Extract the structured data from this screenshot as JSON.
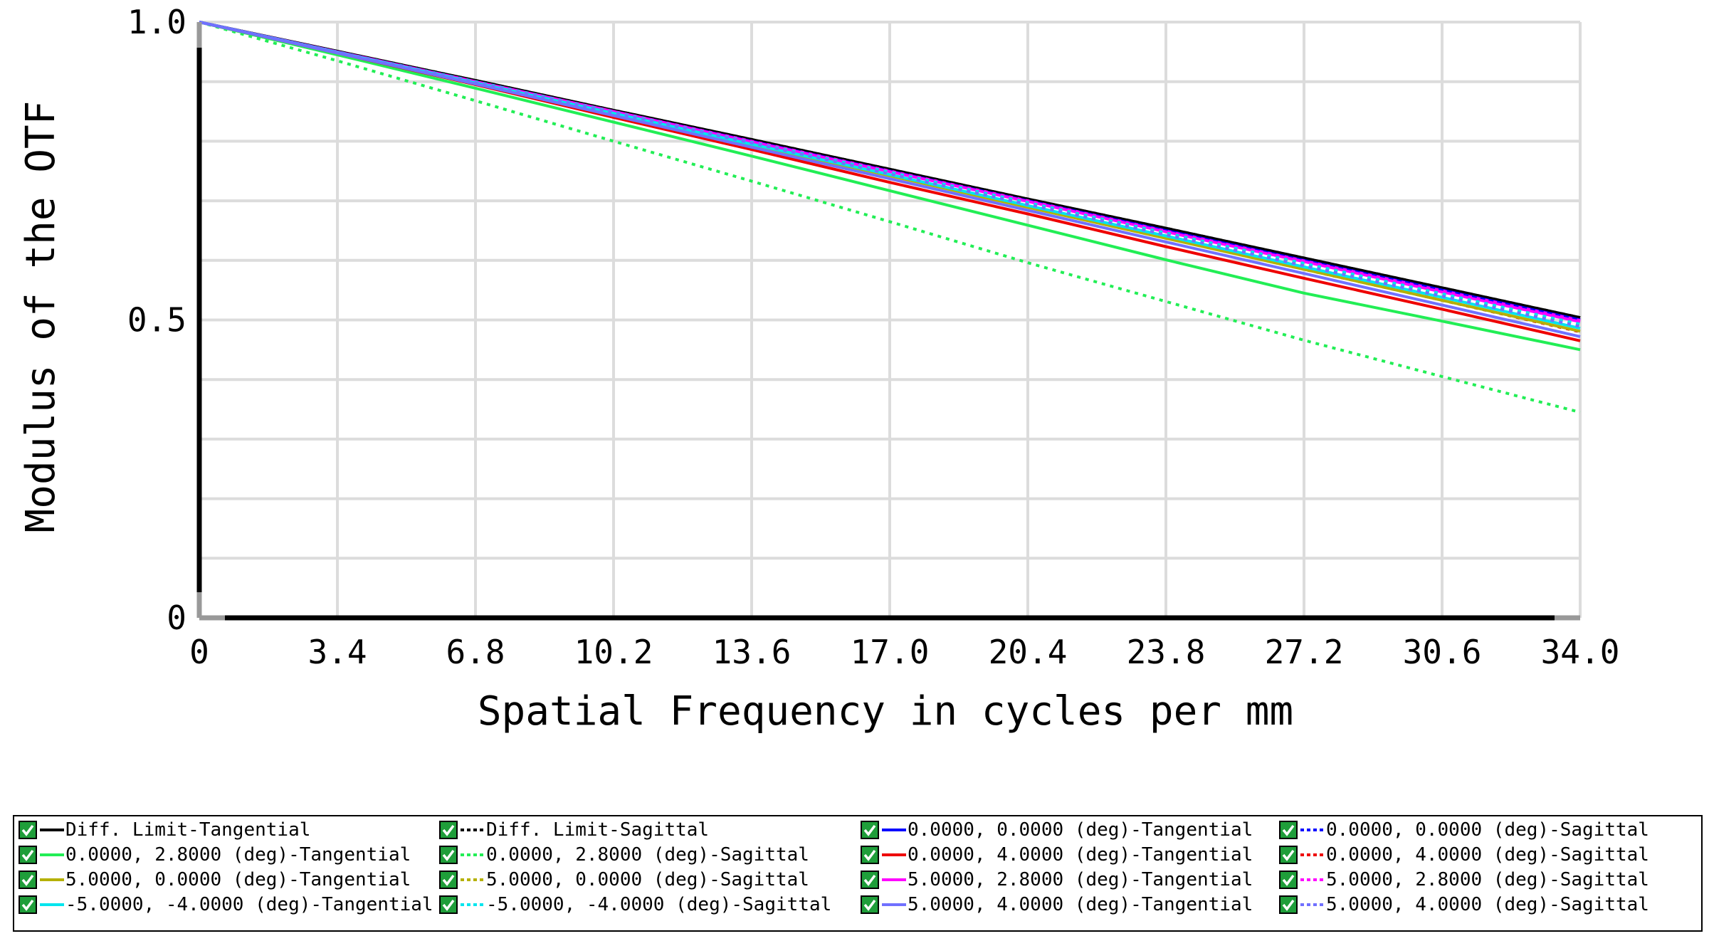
{
  "chart_data": {
    "type": "line",
    "xlabel": "Spatial Frequency in cycles per mm",
    "ylabel": "Modulus of the OTF",
    "xlim": [
      0,
      34.0
    ],
    "ylim": [
      0,
      1.0
    ],
    "x_ticks": [
      "0",
      "3.4",
      "6.8",
      "10.2",
      "13.6",
      "17.0",
      "20.4",
      "23.8",
      "27.2",
      "30.6",
      "34.0"
    ],
    "y_ticks": [
      "0",
      "0.5",
      "1.0"
    ],
    "grid": true,
    "x": [
      0,
      3.4,
      6.8,
      10.2,
      13.6,
      17.0,
      20.4,
      23.8,
      27.2,
      30.6,
      34.0
    ],
    "series": [
      {
        "name": "Diff. Limit-Tangential",
        "color": "#000000",
        "dash": "solid",
        "values": [
          1.0,
          0.951,
          0.902,
          0.852,
          0.803,
          0.753,
          0.703,
          0.654,
          0.604,
          0.554,
          0.504
        ]
      },
      {
        "name": "Diff. Limit-Sagittal",
        "color": "#000000",
        "dash": "dotted",
        "values": [
          1.0,
          0.951,
          0.902,
          0.852,
          0.803,
          0.753,
          0.703,
          0.654,
          0.604,
          0.554,
          0.504
        ]
      },
      {
        "name": "0.0000, 0.0000 (deg)-Tangential",
        "color": "#0000ff",
        "dash": "solid",
        "values": [
          1.0,
          0.95,
          0.9,
          0.85,
          0.8,
          0.75,
          0.7,
          0.65,
          0.6,
          0.55,
          0.5
        ]
      },
      {
        "name": "0.0000, 0.0000 (deg)-Sagittal",
        "color": "#0000ff",
        "dash": "dotted",
        "values": [
          1.0,
          0.95,
          0.9,
          0.85,
          0.8,
          0.75,
          0.7,
          0.65,
          0.6,
          0.55,
          0.5
        ]
      },
      {
        "name": "0.0000, 2.8000 (deg)-Tangential",
        "color": "#22ee55",
        "dash": "solid",
        "values": [
          1.0,
          0.945,
          0.889,
          0.832,
          0.775,
          0.717,
          0.659,
          0.601,
          0.545,
          0.498,
          0.45
        ]
      },
      {
        "name": "0.0000, 2.8000 (deg)-Sagittal",
        "color": "#22ee55",
        "dash": "dotted",
        "values": [
          1.0,
          0.935,
          0.868,
          0.8,
          0.733,
          0.665,
          0.596,
          0.531,
          0.466,
          0.405,
          0.345
        ]
      },
      {
        "name": "0.0000, 4.0000 (deg)-Tangential",
        "color": "#ee0000",
        "dash": "solid",
        "values": [
          1.0,
          0.948,
          0.895,
          0.84,
          0.786,
          0.731,
          0.678,
          0.623,
          0.57,
          0.518,
          0.465
        ]
      },
      {
        "name": "0.0000, 4.0000 (deg)-Sagittal",
        "color": "#ee0000",
        "dash": "dotted",
        "values": [
          1.0,
          0.95,
          0.899,
          0.847,
          0.795,
          0.743,
          0.69,
          0.638,
          0.585,
          0.533,
          0.48
        ]
      },
      {
        "name": "5.0000, 0.0000 (deg)-Tangential",
        "color": "#b5b000",
        "dash": "solid",
        "values": [
          1.0,
          0.949,
          0.898,
          0.846,
          0.794,
          0.742,
          0.689,
          0.637,
          0.585,
          0.533,
          0.481
        ]
      },
      {
        "name": "5.0000, 0.0000 (deg)-Sagittal",
        "color": "#b5b000",
        "dash": "dotted",
        "values": [
          1.0,
          0.95,
          0.9,
          0.849,
          0.798,
          0.747,
          0.696,
          0.645,
          0.594,
          0.543,
          0.492
        ]
      },
      {
        "name": "5.0000, 2.8000 (deg)-Tangential",
        "color": "#ff00ff",
        "dash": "solid",
        "values": [
          1.0,
          0.95,
          0.9,
          0.85,
          0.799,
          0.749,
          0.699,
          0.648,
          0.598,
          0.547,
          0.497
        ]
      },
      {
        "name": "5.0000, 2.8000 (deg)-Sagittal",
        "color": "#ff00ff",
        "dash": "dotted",
        "values": [
          1.0,
          0.95,
          0.9,
          0.85,
          0.8,
          0.75,
          0.7,
          0.649,
          0.599,
          0.549,
          0.499
        ]
      },
      {
        "name": "-5.0000, -4.0000 (deg)-Tangential",
        "color": "#00e5ee",
        "dash": "solid",
        "values": [
          1.0,
          0.949,
          0.898,
          0.847,
          0.795,
          0.744,
          0.692,
          0.641,
          0.589,
          0.538,
          0.486
        ]
      },
      {
        "name": "-5.0000, -4.0000 (deg)-Sagittal",
        "color": "#00e5ee",
        "dash": "dotted",
        "values": [
          1.0,
          0.95,
          0.9,
          0.849,
          0.798,
          0.748,
          0.697,
          0.646,
          0.595,
          0.544,
          0.493
        ]
      },
      {
        "name": "5.0000, 4.0000 (deg)-Tangential",
        "color": "#7070ff",
        "dash": "solid",
        "values": [
          1.0,
          0.948,
          0.896,
          0.843,
          0.79,
          0.737,
          0.684,
          0.631,
          0.578,
          0.525,
          0.472
        ]
      },
      {
        "name": "5.0000, 4.0000 (deg)-Sagittal",
        "color": "#7070ff",
        "dash": "dotted",
        "values": [
          1.0,
          0.95,
          0.899,
          0.848,
          0.797,
          0.745,
          0.694,
          0.643,
          0.591,
          0.54,
          0.489
        ]
      }
    ]
  }
}
